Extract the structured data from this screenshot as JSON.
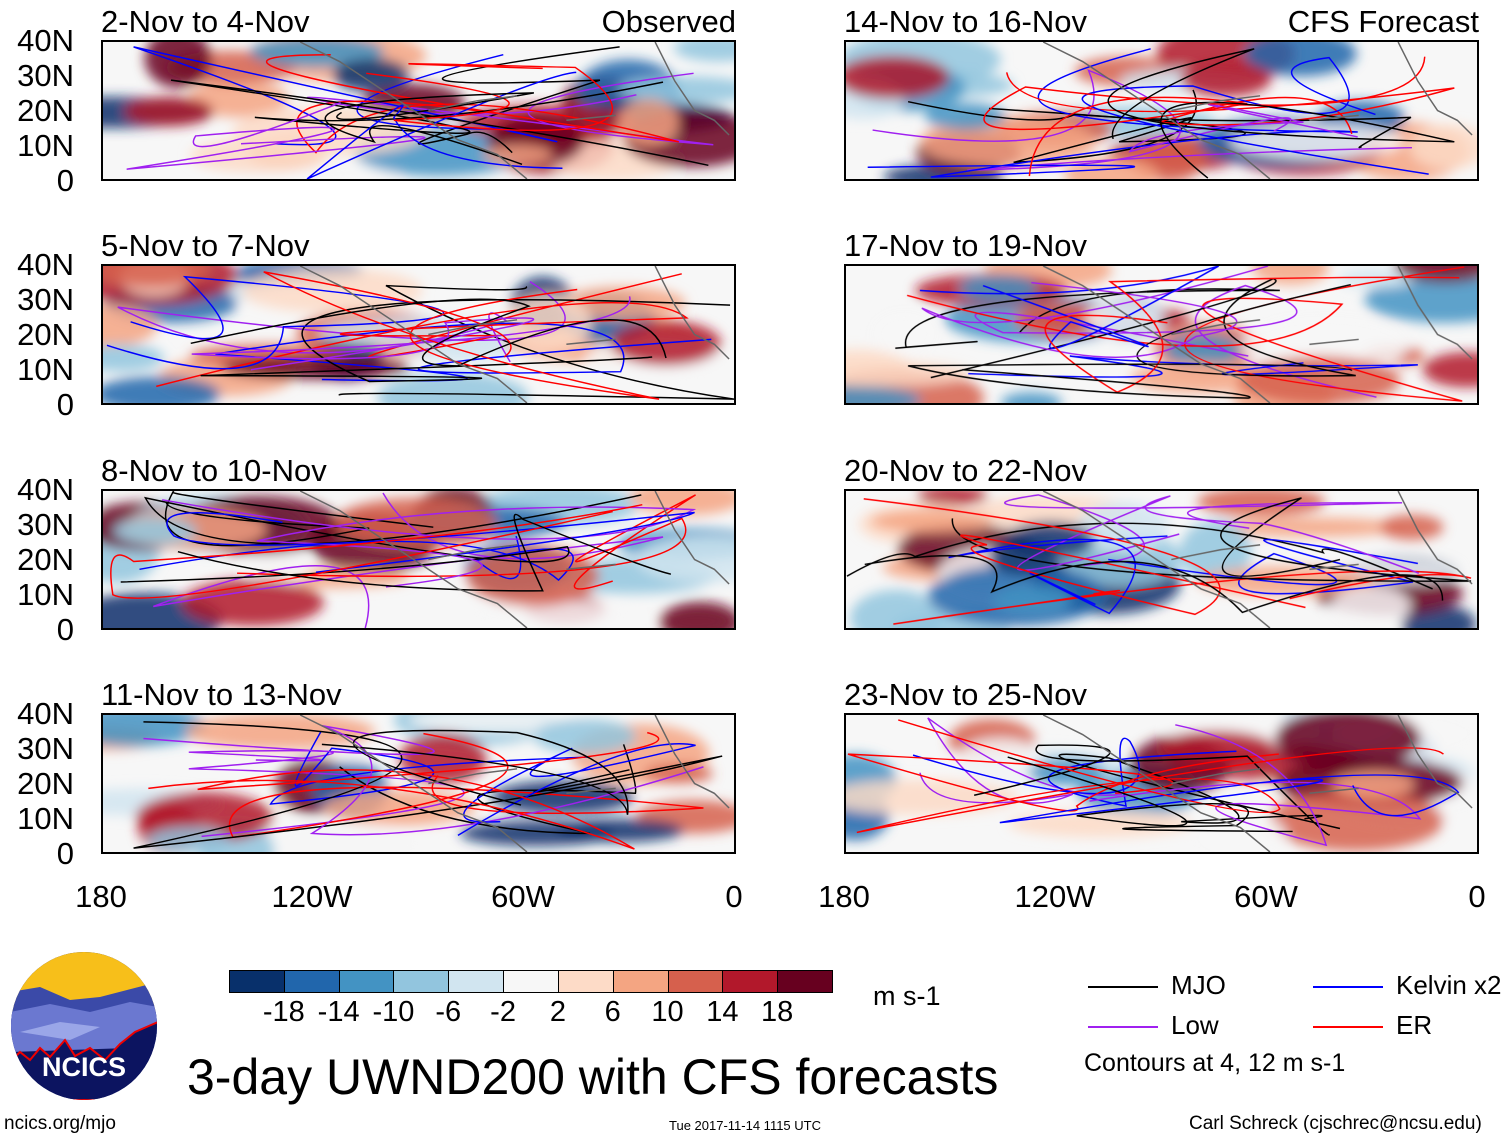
{
  "panels": [
    {
      "title": "2-Nov to 4-Nov",
      "tag": "Observed",
      "column": "left",
      "seed": 1
    },
    {
      "title": "5-Nov to 7-Nov",
      "tag": "",
      "column": "left",
      "seed": 2
    },
    {
      "title": "8-Nov to 10-Nov",
      "tag": "",
      "column": "left",
      "seed": 3
    },
    {
      "title": "11-Nov to 13-Nov",
      "tag": "",
      "column": "left",
      "seed": 4
    },
    {
      "title": "14-Nov to 16-Nov",
      "tag": "CFS Forecast",
      "column": "right",
      "seed": 5
    },
    {
      "title": "17-Nov to 19-Nov",
      "tag": "",
      "column": "right",
      "seed": 6
    },
    {
      "title": "20-Nov to 22-Nov",
      "tag": "",
      "column": "right",
      "seed": 7
    },
    {
      "title": "23-Nov to 25-Nov",
      "tag": "",
      "column": "right",
      "seed": 8
    }
  ],
  "y_ticks": [
    "40N",
    "30N",
    "20N",
    "10N",
    "0"
  ],
  "x_ticks": [
    "180",
    "120W",
    "60W",
    "0"
  ],
  "colorbar": {
    "colors": [
      "#08306b",
      "#2166ac",
      "#4393c3",
      "#92c5de",
      "#d1e5f0",
      "#f7f7f7",
      "#fddbc7",
      "#f4a582",
      "#d6604d",
      "#b2182b",
      "#67001f"
    ],
    "labels": [
      "-18",
      "-14",
      "-10",
      "-6",
      "-2",
      "2",
      "6",
      "10",
      "14",
      "18"
    ],
    "units": "m s-1"
  },
  "legend": {
    "items": [
      {
        "label": "MJO",
        "color": "#000000"
      },
      {
        "label": "Low",
        "color": "#a020f0"
      },
      {
        "label": "Kelvin x2",
        "color": "#0000ff"
      },
      {
        "label": "ER",
        "color": "#ff0000"
      }
    ],
    "note": "Contours at 4, 12 m s-1"
  },
  "title": "3-day UWND200 with CFS forecasts",
  "logo_text": "NCICS",
  "footer": {
    "url": "ncics.org/mjo",
    "timestamp": "Tue 2017-11-14 1115 UTC",
    "author": "Carl Schreck (cjschrec@ncsu.edu)"
  }
}
